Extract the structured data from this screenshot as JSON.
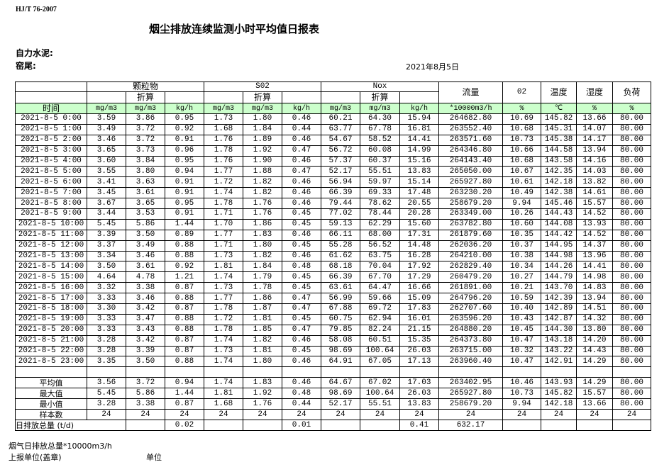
{
  "standard": "HJ/T  76-2007",
  "title": "烟尘排放连续监测小时平均值日报表",
  "company_label": "自力水泥:",
  "kiln_label": "窑尾:",
  "report_date": "2021年8月5日",
  "header": {
    "particulate": "颗粒物",
    "so2": "S02",
    "nox": "Nox",
    "converted": "折算",
    "flow": "流量",
    "o2": "02",
    "temp": "温度",
    "humidity": "湿度",
    "load": "负荷",
    "time": "时间",
    "units": [
      "mg/m3",
      "mg/m3",
      "kg/h",
      "mg/m3",
      "mg/m3",
      "kg/h",
      "mg/m3",
      "mg/m3",
      "kg/h",
      "*10000m3/h",
      "%",
      "℃",
      "%",
      "%"
    ]
  },
  "rows": [
    [
      "2021-8-5 0:00",
      "3.59",
      "3.86",
      "0.95",
      "1.73",
      "1.80",
      "0.46",
      "60.21",
      "64.30",
      "15.94",
      "264682.80",
      "10.69",
      "145.82",
      "13.66",
      "80.00"
    ],
    [
      "2021-8-5 1:00",
      "3.49",
      "3.72",
      "0.92",
      "1.68",
      "1.84",
      "0.44",
      "63.77",
      "67.78",
      "16.81",
      "263552.40",
      "10.68",
      "145.31",
      "14.07",
      "80.00"
    ],
    [
      "2021-8-5 2:00",
      "3.46",
      "3.72",
      "0.91",
      "1.76",
      "1.89",
      "0.46",
      "54.67",
      "58.52",
      "14.41",
      "263571.60",
      "10.73",
      "145.38",
      "14.17",
      "80.00"
    ],
    [
      "2021-8-5 3:00",
      "3.65",
      "3.73",
      "0.96",
      "1.78",
      "1.92",
      "0.47",
      "56.72",
      "60.08",
      "14.99",
      "264346.80",
      "10.66",
      "144.58",
      "13.94",
      "80.00"
    ],
    [
      "2021-8-5 4:00",
      "3.60",
      "3.84",
      "0.95",
      "1.76",
      "1.90",
      "0.46",
      "57.37",
      "60.37",
      "15.16",
      "264143.40",
      "10.68",
      "143.58",
      "14.16",
      "80.00"
    ],
    [
      "2021-8-5 5:00",
      "3.55",
      "3.80",
      "0.94",
      "1.77",
      "1.88",
      "0.47",
      "52.17",
      "55.51",
      "13.83",
      "265050.00",
      "10.67",
      "142.35",
      "14.03",
      "80.00"
    ],
    [
      "2021-8-5 6:00",
      "3.41",
      "3.63",
      "0.91",
      "1.72",
      "1.82",
      "0.46",
      "56.94",
      "59.97",
      "15.14",
      "265927.80",
      "10.61",
      "142.18",
      "13.82",
      "80.00"
    ],
    [
      "2021-8-5 7:00",
      "3.45",
      "3.61",
      "0.91",
      "1.74",
      "1.82",
      "0.46",
      "66.39",
      "69.33",
      "17.48",
      "263230.20",
      "10.49",
      "142.38",
      "14.61",
      "80.00"
    ],
    [
      "2021-8-5 8:00",
      "3.67",
      "3.65",
      "0.95",
      "1.78",
      "1.76",
      "0.46",
      "79.44",
      "78.62",
      "20.55",
      "258679.20",
      "9.94",
      "145.46",
      "15.57",
      "80.00"
    ],
    [
      "2021-8-5 9:00",
      "3.44",
      "3.53",
      "0.91",
      "1.71",
      "1.76",
      "0.45",
      "77.02",
      "78.44",
      "20.28",
      "263349.00",
      "10.26",
      "144.43",
      "14.52",
      "80.00"
    ],
    [
      "2021-8-5 10:00",
      "5.45",
      "5.86",
      "1.44",
      "1.70",
      "1.86",
      "0.45",
      "59.13",
      "62.29",
      "15.60",
      "263782.80",
      "10.60",
      "144.08",
      "13.93",
      "80.00"
    ],
    [
      "2021-8-5 11:00",
      "3.39",
      "3.50",
      "0.89",
      "1.77",
      "1.83",
      "0.46",
      "66.11",
      "68.00",
      "17.31",
      "261879.60",
      "10.35",
      "144.42",
      "14.52",
      "80.00"
    ],
    [
      "2021-8-5 12:00",
      "3.37",
      "3.49",
      "0.88",
      "1.71",
      "1.80",
      "0.45",
      "55.28",
      "56.52",
      "14.48",
      "262036.20",
      "10.37",
      "144.95",
      "14.37",
      "80.00"
    ],
    [
      "2021-8-5 13:00",
      "3.34",
      "3.46",
      "0.88",
      "1.73",
      "1.82",
      "0.46",
      "61.62",
      "63.75",
      "16.28",
      "264210.00",
      "10.38",
      "144.98",
      "13.96",
      "80.00"
    ],
    [
      "2021-8-5 14:00",
      "3.50",
      "3.61",
      "0.92",
      "1.81",
      "1.84",
      "0.48",
      "68.18",
      "70.04",
      "17.92",
      "262829.40",
      "10.34",
      "144.26",
      "14.41",
      "80.00"
    ],
    [
      "2021-8-5 15:00",
      "4.64",
      "4.78",
      "1.21",
      "1.74",
      "1.79",
      "0.45",
      "66.39",
      "67.70",
      "17.29",
      "260479.20",
      "10.27",
      "144.79",
      "14.98",
      "80.00"
    ],
    [
      "2021-8-5 16:00",
      "3.32",
      "3.38",
      "0.87",
      "1.73",
      "1.78",
      "0.45",
      "63.61",
      "64.47",
      "16.66",
      "261891.00",
      "10.21",
      "143.70",
      "14.83",
      "80.00"
    ],
    [
      "2021-8-5 17:00",
      "3.33",
      "3.46",
      "0.88",
      "1.77",
      "1.86",
      "0.47",
      "56.99",
      "59.66",
      "15.09",
      "264796.20",
      "10.59",
      "142.39",
      "13.94",
      "80.00"
    ],
    [
      "2021-8-5 18:00",
      "3.30",
      "3.42",
      "0.87",
      "1.78",
      "1.87",
      "0.47",
      "67.88",
      "69.72",
      "17.83",
      "262707.60",
      "10.40",
      "142.89",
      "14.51",
      "80.00"
    ],
    [
      "2021-8-5 19:00",
      "3.33",
      "3.47",
      "0.88",
      "1.72",
      "1.81",
      "0.45",
      "60.75",
      "62.94",
      "16.01",
      "263596.20",
      "10.43",
      "142.87",
      "14.32",
      "80.00"
    ],
    [
      "2021-8-5 20:00",
      "3.33",
      "3.43",
      "0.88",
      "1.78",
      "1.85",
      "0.47",
      "79.85",
      "82.24",
      "21.15",
      "264880.20",
      "10.45",
      "144.30",
      "13.80",
      "80.00"
    ],
    [
      "2021-8-5 21:00",
      "3.28",
      "3.42",
      "0.87",
      "1.74",
      "1.82",
      "0.46",
      "58.08",
      "60.51",
      "15.35",
      "264373.80",
      "10.47",
      "143.18",
      "14.20",
      "80.00"
    ],
    [
      "2021-8-5 22:00",
      "3.28",
      "3.39",
      "0.87",
      "1.73",
      "1.81",
      "0.45",
      "98.69",
      "100.64",
      "26.03",
      "263715.00",
      "10.32",
      "143.22",
      "14.43",
      "80.00"
    ],
    [
      "2021-8-5 23:00",
      "3.35",
      "3.50",
      "0.88",
      "1.74",
      "1.80",
      "0.46",
      "64.91",
      "67.05",
      "17.13",
      "263960.40",
      "10.47",
      "142.91",
      "14.29",
      "80.00"
    ]
  ],
  "stats": [
    [
      "平均值",
      "3.56",
      "3.72",
      "0.94",
      "1.74",
      "1.83",
      "0.46",
      "64.67",
      "67.02",
      "17.03",
      "263402.95",
      "10.46",
      "143.93",
      "14.29",
      "80.00"
    ],
    [
      "最大值",
      "5.45",
      "5.86",
      "1.44",
      "1.81",
      "1.92",
      "0.48",
      "98.69",
      "100.64",
      "26.03",
      "265927.80",
      "10.73",
      "145.82",
      "15.57",
      "80.00"
    ],
    [
      "最小值",
      "3.28",
      "3.38",
      "0.87",
      "1.68",
      "1.76",
      "0.44",
      "52.17",
      "55.51",
      "13.83",
      "258679.20",
      "9.94",
      "142.18",
      "13.66",
      "80.00"
    ],
    [
      "样本数",
      "24",
      "24",
      "24",
      "24",
      "24",
      "24",
      "24",
      "24",
      "24",
      "24",
      "24",
      "24",
      "24",
      "24"
    ]
  ],
  "daily_total": {
    "label": "日排放总量 (t/d)",
    "values": [
      "",
      "0.02",
      "",
      "",
      "0.01",
      "",
      "",
      "0.41",
      "632.17",
      "",
      "",
      "",
      ""
    ]
  },
  "notes": {
    "flue_gas_total": "烟气日排放总量*10000m3/h",
    "reporting_unit": "上报单位(盖章)",
    "unit": "单位"
  }
}
